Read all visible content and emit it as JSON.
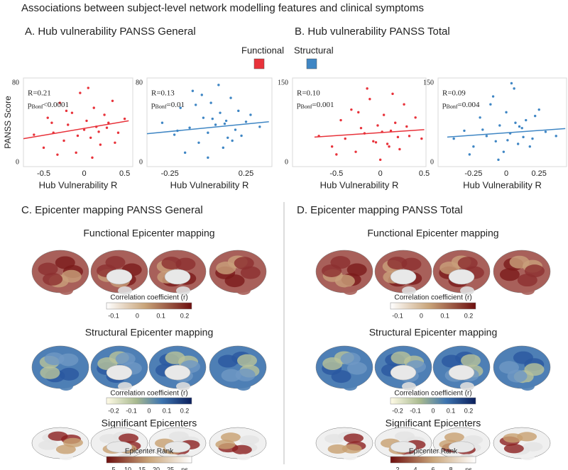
{
  "title": "Associations between subject-level network modelling features and clinical symptoms",
  "panels": [
    "A. Hub vulnerability PANSS General",
    "B. Hub vulnerability PANSS Total"
  ],
  "legend": [
    {
      "name": "Functional",
      "color": "#e8323a"
    },
    {
      "name": "Structural",
      "color": "#3f86c4"
    }
  ],
  "chart_data": [
    {
      "type": "scatter",
      "color": "#e8323a",
      "xlabel": "Hub Vulnerability R",
      "ylabel": "PANSS  Score",
      "xlim": [
        -0.75,
        0.6
      ],
      "ylim": [
        -4,
        85
      ],
      "xticks": [
        -0.5,
        0,
        0.5
      ],
      "yticks": [
        0,
        80
      ],
      "annotation": {
        "r": "R=0.21",
        "p": "p",
        "sub": "Bonf",
        "rest": "<0.0001"
      },
      "x": [
        -0.62,
        -0.5,
        -0.45,
        -0.38,
        -0.3,
        -0.25,
        -0.2,
        -0.15,
        -0.1,
        -0.05,
        0,
        0.03,
        0.08,
        0.12,
        0.15,
        0.2,
        0.25,
        0.3,
        0.35,
        0.42,
        0.5,
        -0.33,
        -0.08,
        0.05,
        0.18,
        -0.22,
        0.1,
        0.28,
        -0.4,
        0.38
      ],
      "y": [
        28,
        15,
        45,
        30,
        60,
        22,
        38,
        50,
        10,
        70,
        33,
        42,
        25,
        55,
        36,
        18,
        48,
        40,
        62,
        30,
        44,
        8,
        27,
        75,
        31,
        52,
        5,
        35,
        40,
        20
      ],
      "trend": {
        "x": [
          -0.75,
          0.55
        ],
        "y": [
          24,
          42
        ]
      }
    },
    {
      "type": "scatter",
      "color": "#3f86c4",
      "xlabel": "Hub Vulnerability R",
      "xlim": [
        -0.4,
        0.42
      ],
      "ylim": [
        -4,
        85
      ],
      "xticks": [
        -0.25,
        0.25
      ],
      "yticks": [
        0,
        80
      ],
      "annotation": {
        "r": "R=0.13",
        "p": "p",
        "sub": "Bonf",
        "rest": "=0.01"
      },
      "x": [
        -0.3,
        -0.22,
        -0.18,
        -0.12,
        -0.1,
        -0.06,
        -0.03,
        0,
        0.02,
        0.05,
        0.08,
        0.1,
        0.12,
        0.15,
        0.18,
        0.22,
        0.28,
        0.34,
        -0.15,
        -0.08,
        0.03,
        0.07,
        0.13,
        0.2,
        -0.2,
        0.0,
        0.11,
        0.25,
        -0.04,
        0.16
      ],
      "y": [
        40,
        28,
        55,
        35,
        72,
        20,
        45,
        30,
        60,
        38,
        50,
        15,
        42,
        65,
        33,
        27,
        48,
        36,
        10,
        58,
        44,
        78,
        25,
        52,
        32,
        5,
        39,
        41,
        68,
        22
      ],
      "trend": {
        "x": [
          -0.4,
          0.4
        ],
        "y": [
          29,
          41
        ]
      }
    },
    {
      "type": "scatter",
      "color": "#e8323a",
      "xlabel": "Hub Vulnerability R",
      "xlim": [
        -1.0,
        0.52
      ],
      "ylim": [
        -8,
        160
      ],
      "xticks": [
        -0.5,
        0,
        0.5
      ],
      "yticks": [
        0,
        150
      ],
      "annotation": {
        "r": "R=0.10",
        "p": "p",
        "sub": "Bonf",
        "rest": "=0.001"
      },
      "x": [
        -0.7,
        -0.55,
        -0.45,
        -0.4,
        -0.33,
        -0.28,
        -0.22,
        -0.18,
        -0.12,
        -0.08,
        -0.03,
        0,
        0.04,
        0.08,
        0.12,
        0.17,
        0.22,
        0.27,
        0.33,
        0.4,
        0.47,
        -0.5,
        -0.15,
        0.02,
        0.1,
        -0.25,
        0.2,
        0.3,
        -0.05,
        0.14
      ],
      "y": [
        50,
        30,
        80,
        45,
        100,
        20,
        65,
        55,
        120,
        40,
        70,
        5,
        90,
        35,
        60,
        75,
        25,
        110,
        50,
        85,
        45,
        15,
        140,
        58,
        30,
        95,
        48,
        68,
        38,
        130
      ],
      "trend": {
        "x": [
          -0.75,
          0.5
        ],
        "y": [
          48,
          62
        ]
      }
    },
    {
      "type": "scatter",
      "color": "#3f86c4",
      "xlabel": "Hub Vulnerability R",
      "xlim": [
        -0.52,
        0.46
      ],
      "ylim": [
        -8,
        160
      ],
      "xticks": [
        -0.25,
        0,
        0.25
      ],
      "yticks": [
        0,
        150
      ],
      "annotation": {
        "r": "R=0.09",
        "p": "p",
        "sub": "Bonf",
        "rest": "=0.004"
      },
      "x": [
        -0.4,
        -0.32,
        -0.25,
        -0.2,
        -0.15,
        -0.12,
        -0.08,
        -0.05,
        -0.02,
        0,
        0.03,
        0.06,
        0.09,
        0.12,
        0.15,
        0.2,
        0.25,
        0.3,
        0.38,
        -0.28,
        -0.1,
        0.01,
        0.07,
        0.18,
        -0.18,
        0.04,
        0.13,
        0.22,
        -0.06,
        0.1
      ],
      "y": [
        45,
        60,
        30,
        85,
        50,
        110,
        40,
        70,
        20,
        95,
        55,
        140,
        35,
        65,
        80,
        45,
        100,
        58,
        50,
        15,
        125,
        42,
        75,
        30,
        62,
        150,
        48,
        88,
        5,
        68
      ],
      "trend": {
        "x": [
          -0.45,
          0.45
        ],
        "y": [
          48,
          64
        ]
      }
    }
  ],
  "maps": [
    {
      "title": "C. Epicenter mapping PANSS General",
      "sections": [
        {
          "title": "Functional Epicenter mapping",
          "colorbar": {
            "label": "Correlation coefficient (r)",
            "ticks": [
              "-0.1",
              "0",
              "0.1",
              "0.2"
            ]
          }
        },
        {
          "title": "Structural Epicenter mapping",
          "colorbar": {
            "label": "Correlation coefficient (r)",
            "ticks": [
              "-0.2",
              "-0.1",
              "0",
              "0.1",
              "0.2"
            ]
          }
        },
        {
          "title": "Significant Epicenters",
          "colorbar": {
            "label": "Epicenter Rank",
            "ticks": [
              "5",
              "10",
              "15",
              "20",
              "25",
              "ns"
            ]
          }
        }
      ]
    },
    {
      "title": "D. Epicenter mapping PANSS Total",
      "sections": [
        {
          "title": "Functional Epicenter mapping",
          "colorbar": {
            "label": "Correlation coefficient (r)",
            "ticks": [
              "-0.1",
              "0",
              "0.1",
              "0.2"
            ]
          }
        },
        {
          "title": "Structural Epicenter mapping",
          "colorbar": {
            "label": "Correlation coefficient (r)",
            "ticks": [
              "-0.2",
              "-0.1",
              "0",
              "0.1",
              "0.2"
            ]
          }
        },
        {
          "title": "Significant Epicenters",
          "colorbar": {
            "label": "Epicenter Rank",
            "ticks": [
              "2",
              "4",
              "6",
              "8",
              "ns"
            ]
          }
        }
      ]
    }
  ]
}
